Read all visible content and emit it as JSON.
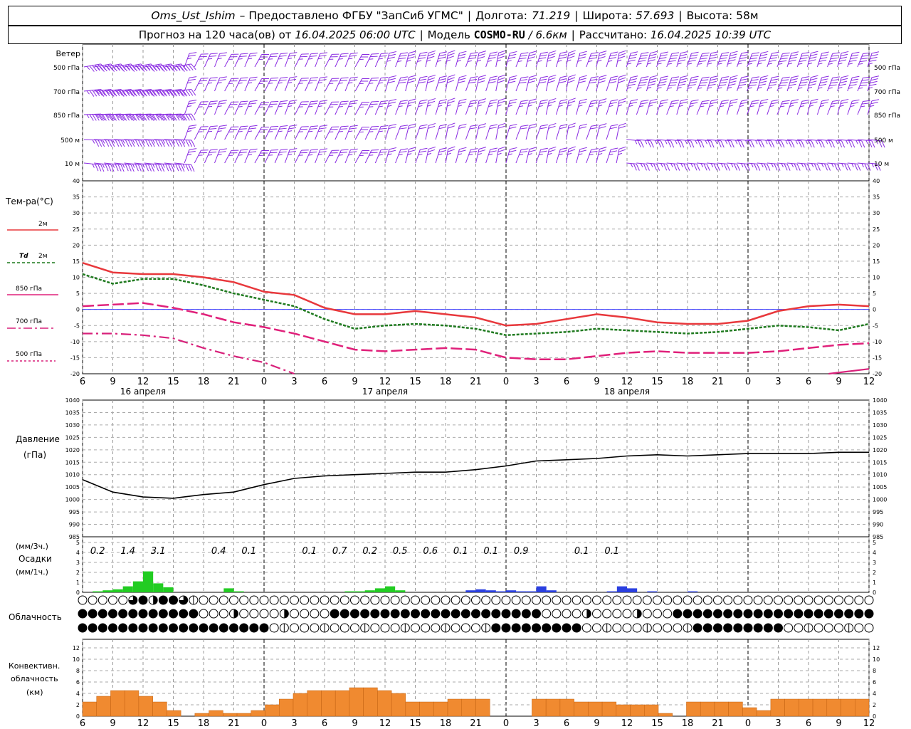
{
  "header": {
    "station": "Oms_Ust_Ishim",
    "provided_prefix": "– Предоставлено ФГБУ \"ЗапСиб УГМС\"",
    "lon_label": "Долгота:",
    "lon": "71.219",
    "lat_label": "Широта:",
    "lat": "57.693",
    "alt_label": "Высота:",
    "alt": "58м",
    "forecast_prefix": "Прогноз на 120 часа(ов) от",
    "forecast_time": "16.04.2025 06:00 UTC",
    "model_label": "Модель",
    "model": "COSMO-RU",
    "model_res": "/ 6.6км",
    "calc_label": "Рассчитано:",
    "calc_time": "16.04.2025 10:39 UTC"
  },
  "labels": {
    "wind": "Ветер",
    "temp": "Тем-ра(°С)",
    "t2m": "2м",
    "td_prefix": "Td",
    "td2m": "2м",
    "t850": "850 гПа",
    "t700": "700 гПа",
    "t500": "500 гПа",
    "pressure1": "Давление",
    "pressure2": "(гПа)",
    "precip1": "(мм/3ч.)",
    "precip2": "Осадки",
    "precip3": "(мм/1ч.)",
    "cloud": "Облачность",
    "conv1": "Конвективн.",
    "conv2": "облачность",
    "conv3": "(км)"
  },
  "colors": {
    "wind": "#8a2be2",
    "t2m": "#e8383c",
    "td": "#1f7a1f",
    "t850": "#e0207a",
    "t700": "#d8207a",
    "t500": "#d8207a",
    "pressure": "#000000",
    "rain": "#22cc22",
    "snow": "#2a3fe0",
    "conv": "#f08a30",
    "zero_line": "#4040ff"
  },
  "chart_data": [
    {
      "type": "wind_barbs",
      "levels": [
        "500 гПа",
        "700 гПа",
        "850 гПа",
        "500 м",
        "10 м"
      ]
    },
    {
      "type": "line",
      "ylim": [
        -20,
        40
      ],
      "yticks": [
        -20,
        -15,
        -10,
        -5,
        0,
        5,
        10,
        15,
        20,
        25,
        30,
        35,
        40
      ],
      "x_hours": [
        0,
        3,
        6,
        9,
        12,
        15,
        18,
        21,
        24,
        27,
        30,
        33,
        36,
        39,
        42,
        45,
        48,
        51,
        54,
        57,
        60,
        63,
        66,
        69,
        72,
        75,
        78
      ],
      "xtick_labels": [
        "6",
        "9",
        "12",
        "15",
        "18",
        "21",
        "0",
        "3",
        "6",
        "9",
        "12",
        "15",
        "18",
        "21",
        "0",
        "3",
        "6",
        "9",
        "12",
        "15",
        "18",
        "21",
        "0",
        "3",
        "6",
        "9",
        "12"
      ],
      "day_labels": [
        "16 апреля",
        "17 апреля",
        "18 апреля"
      ],
      "series": [
        {
          "name": "2м",
          "values": [
            14.5,
            11.5,
            11,
            11,
            10,
            8.5,
            5.5,
            4.5,
            0.5,
            -1.5,
            -1.5,
            -0.5,
            -1.5,
            -2.5,
            -5,
            -4.5,
            -3,
            -1.5,
            -2.5,
            -4,
            -4.5,
            -4.5,
            -3.5,
            -0.5,
            1,
            1.5,
            1
          ]
        },
        {
          "name": "Td 2м",
          "values": [
            11,
            8,
            9.5,
            9.5,
            7.5,
            5,
            3,
            1,
            -3,
            -6,
            -5,
            -4.5,
            -5,
            -6,
            -8,
            -7.5,
            -7,
            -6,
            -6.5,
            -7,
            -7.5,
            -7,
            -6,
            -5,
            -5.5,
            -6.5,
            -4.5
          ]
        },
        {
          "name": "850 гПа",
          "values": [
            1,
            1.5,
            2,
            0.5,
            -1.5,
            -4,
            -5.5,
            -7.5,
            -10,
            -12.5,
            -13,
            -12.5,
            -12,
            -12.5,
            -15,
            -15.5,
            -15.5,
            -14.5,
            -13.5,
            -13,
            -13.5,
            -13.5,
            -13.5,
            -13,
            -12,
            -11,
            -10.5
          ]
        },
        {
          "name": "700 гПа",
          "values": [
            -7.5,
            -7.5,
            -8,
            -9,
            -12,
            -14.5,
            -16.5,
            -20
          ]
        },
        {
          "name": "500 гПа",
          "values": [
            -20,
            -20
          ]
        }
      ]
    },
    {
      "type": "line",
      "ylim": [
        985,
        1040
      ],
      "yticks": [
        985,
        990,
        995,
        1000,
        1005,
        1010,
        1015,
        1020,
        1025,
        1030,
        1035,
        1040
      ],
      "series": [
        {
          "name": "Давление",
          "values": [
            1008,
            1003,
            1001,
            1000.5,
            1002,
            1003,
            1006,
            1008.5,
            1009.5,
            1010,
            1010.5,
            1011,
            1011,
            1012,
            1013.5,
            1015.5,
            1016,
            1016.5,
            1017.5,
            1018,
            1017.5,
            1018,
            1018.5,
            1018.5,
            1018.5,
            1019,
            1019
          ]
        }
      ]
    },
    {
      "type": "bar",
      "ylim": [
        0,
        5
      ],
      "yticks": [
        0,
        1,
        2,
        3,
        4,
        5
      ],
      "totals_3h": [
        "0.2",
        "1.4",
        "3.1",
        "",
        "0.4",
        "0.1",
        "",
        "0.1",
        "0.7",
        "0.2",
        "0.5",
        "0.6",
        "0.1",
        "0.1",
        "0.9",
        "",
        "0.1",
        "0.1"
      ],
      "series": [
        {
          "name": "rain_1h",
          "values": [
            0,
            0.1,
            0.2,
            0.3,
            0.6,
            1.1,
            2.1,
            0.9,
            0.5,
            0,
            0,
            0,
            0,
            0,
            0.4,
            0.1,
            0,
            0,
            0,
            0,
            0,
            0,
            0,
            0,
            0,
            0,
            0.1,
            0.1,
            0.2,
            0.4,
            0.6,
            0.2
          ]
        },
        {
          "name": "snow_1h",
          "values": [
            0.2,
            0.3,
            0.2,
            0.1,
            0.2,
            0.1,
            0.1,
            0.6,
            0.2,
            0,
            0,
            0,
            0,
            0,
            0.1,
            0.6,
            0.4,
            0,
            0.1,
            0,
            0,
            0,
            0.1
          ]
        }
      ]
    },
    {
      "type": "symbols",
      "rows": [
        "upper",
        "middle",
        "lower"
      ]
    },
    {
      "type": "bar",
      "ylim": [
        0,
        13
      ],
      "yticks": [
        0,
        2,
        4,
        6,
        8,
        10,
        12
      ],
      "series": [
        {
          "name": "convective_km",
          "values": [
            2.5,
            3.5,
            4.5,
            4.5,
            3.5,
            2.5,
            1,
            0,
            0.5,
            1,
            0.5,
            0.5,
            1,
            2,
            3,
            4,
            4.5,
            4.5,
            4.5,
            5,
            5,
            4.5,
            4,
            2.5,
            2.5,
            2.5,
            3,
            3,
            3,
            0,
            0,
            0,
            3,
            3,
            3,
            2.5,
            2.5,
            2.5,
            2,
            2,
            2,
            0.5,
            0,
            2.5,
            2.5,
            2.5,
            2.5,
            1.5,
            1,
            3,
            3,
            3,
            3,
            3,
            3,
            3
          ]
        }
      ]
    }
  ]
}
